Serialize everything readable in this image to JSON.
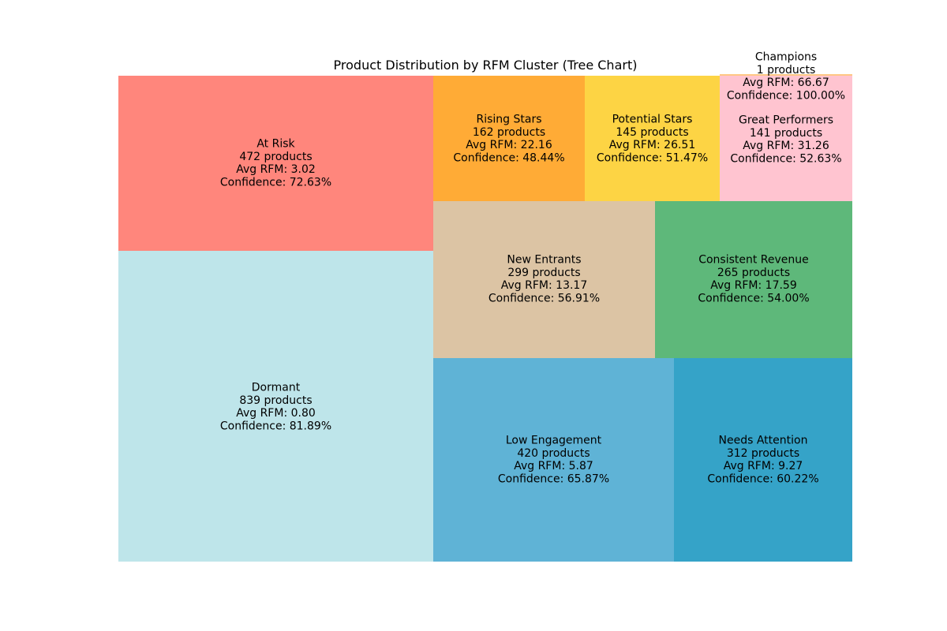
{
  "chart_data": {
    "type": "treemap",
    "title": "Product Distribution by RFM Cluster (Tree Chart)",
    "cells": [
      {
        "name": "Dormant",
        "products": 839,
        "avg_rfm": "0.80",
        "confidence": "81.89%",
        "color": "#BEE5EA",
        "lines": [
          "Dormant",
          "839 products",
          "Avg RFM: 0.80",
          "Confidence: 81.89%"
        ]
      },
      {
        "name": "At Risk",
        "products": 472,
        "avg_rfm": "3.02",
        "confidence": "72.63%",
        "color": "#FF867C",
        "lines": [
          "At Risk",
          "472 products",
          "Avg RFM: 3.02",
          "Confidence: 72.63%"
        ]
      },
      {
        "name": "Low Engagement",
        "products": 420,
        "avg_rfm": "5.87",
        "confidence": "65.87%",
        "color": "#5FB3D6",
        "lines": [
          "Low Engagement",
          "420 products",
          "Avg RFM: 5.87",
          "Confidence: 65.87%"
        ]
      },
      {
        "name": "Needs Attention",
        "products": 312,
        "avg_rfm": "9.27",
        "confidence": "60.22%",
        "color": "#35A3C8",
        "lines": [
          "Needs Attention",
          "312 products",
          "Avg RFM: 9.27",
          "Confidence: 60.22%"
        ]
      },
      {
        "name": "New Entrants",
        "products": 299,
        "avg_rfm": "13.17",
        "confidence": "56.91%",
        "color": "#DCC4A4",
        "lines": [
          "New Entrants",
          "299 products",
          "Avg RFM: 13.17",
          "Confidence: 56.91%"
        ]
      },
      {
        "name": "Consistent Revenue",
        "products": 265,
        "avg_rfm": "17.59",
        "confidence": "54.00%",
        "color": "#5EB87A",
        "lines": [
          "Consistent Revenue",
          "265 products",
          "Avg RFM: 17.59",
          "Confidence: 54.00%"
        ]
      },
      {
        "name": "Rising Stars",
        "products": 162,
        "avg_rfm": "22.16",
        "confidence": "48.44%",
        "color": "#FFAB36",
        "lines": [
          "Rising Stars",
          "162 products",
          "Avg RFM: 22.16",
          "Confidence: 48.44%"
        ]
      },
      {
        "name": "Potential Stars",
        "products": 145,
        "avg_rfm": "26.51",
        "confidence": "51.47%",
        "color": "#FDD444",
        "lines": [
          "Potential Stars",
          "145 products",
          "Avg RFM: 26.51",
          "Confidence: 51.47%"
        ]
      },
      {
        "name": "Great Performers",
        "products": 141,
        "avg_rfm": "31.26",
        "confidence": "52.63%",
        "color": "#FFC4D0",
        "lines": [
          "Great Performers",
          "141 products",
          "Avg RFM: 31.26",
          "Confidence: 52.63%"
        ]
      },
      {
        "name": "Champions",
        "products": 1,
        "avg_rfm": "66.67",
        "confidence": "100.00%",
        "color": "#FFC784",
        "lines": [
          "Champions",
          "1 products",
          "Avg RFM: 66.67",
          "Confidence: 100.00%"
        ]
      }
    ]
  }
}
